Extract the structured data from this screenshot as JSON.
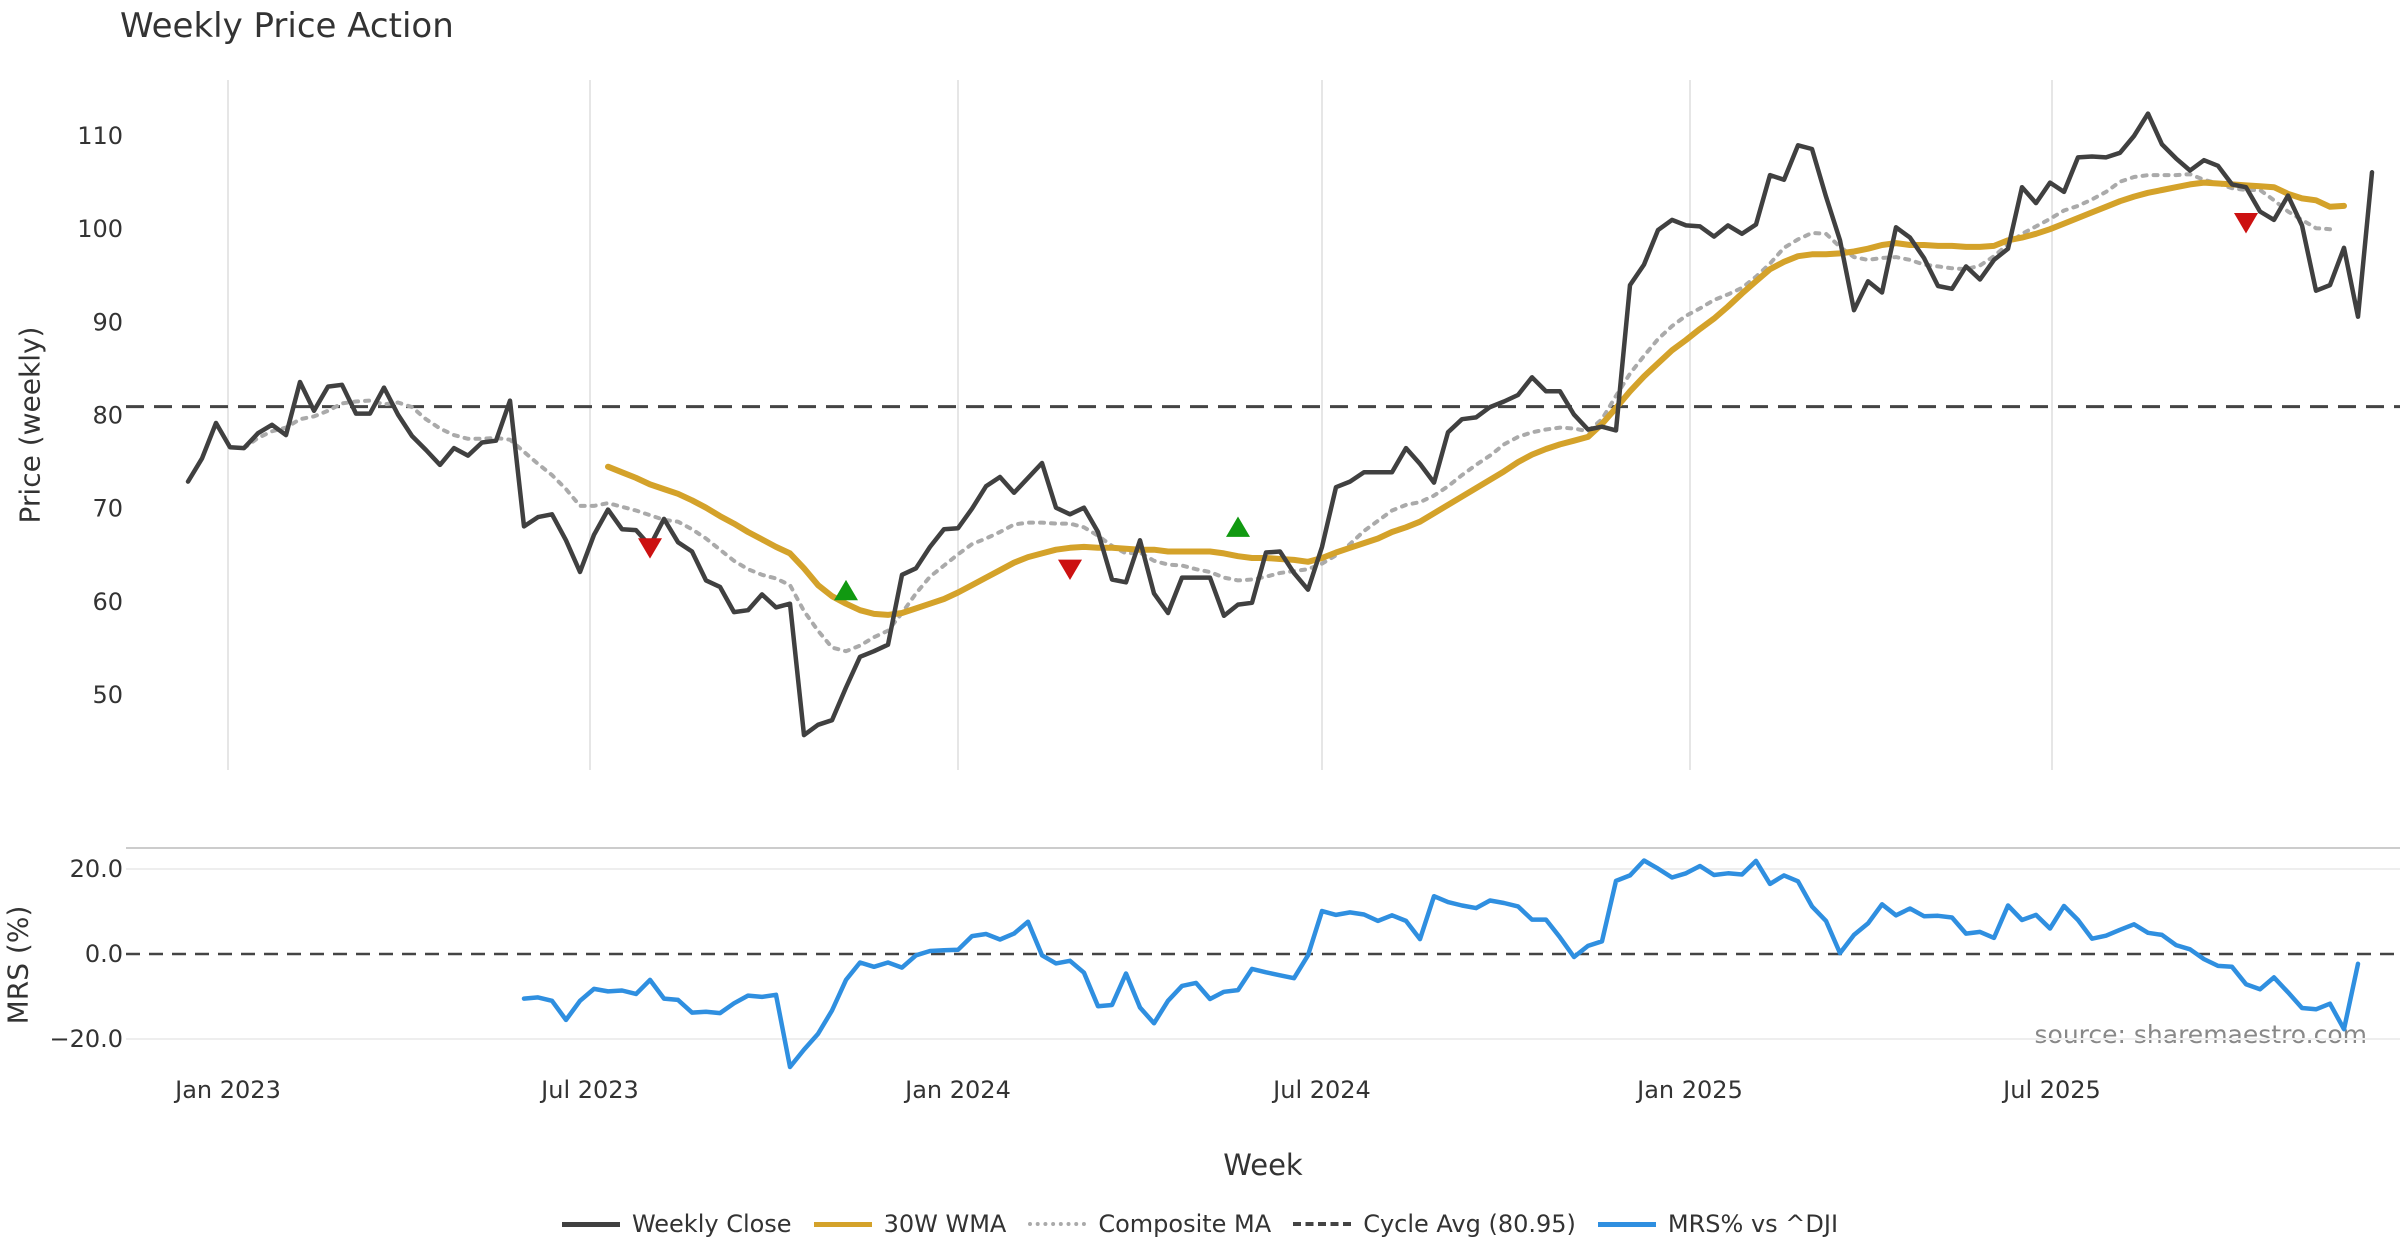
{
  "chart_data": [
    {
      "type": "line",
      "title": "Weekly Price Action",
      "ylabel": "Price (weekly)",
      "xlabel": "Week",
      "x_start": "2022-12-12",
      "x_step_days": 7,
      "ylim": [
        42,
        116
      ],
      "yticks": [
        50,
        60,
        70,
        80,
        90,
        100,
        110
      ],
      "xticks": [
        {
          "date": "2023-01-01",
          "label": "Jan 2023"
        },
        {
          "date": "2023-07-01",
          "label": "Jul 2023"
        },
        {
          "date": "2024-01-01",
          "label": "Jan 2024"
        },
        {
          "date": "2024-07-01",
          "label": "Jul 2024"
        },
        {
          "date": "2025-01-01",
          "label": "Jan 2025"
        },
        {
          "date": "2025-07-01",
          "label": "Jul 2025"
        }
      ],
      "grid": "vertical",
      "hline": {
        "value": 80.95,
        "label": "Cycle Avg (80.95)",
        "color": "#444444"
      },
      "series": [
        {
          "name": "Weekly Close",
          "color": "#404040",
          "values": [
            72.9,
            75.4,
            79.2,
            76.6,
            76.5,
            78.1,
            79.0,
            77.9,
            83.6,
            80.5,
            83.1,
            83.3,
            80.2,
            80.2,
            83.0,
            80.1,
            77.8,
            76.3,
            74.7,
            76.5,
            75.7,
            77.1,
            77.3,
            81.6,
            68.1,
            69.1,
            69.4,
            66.6,
            63.2,
            67.2,
            69.9,
            67.8,
            67.7,
            66.0,
            68.9,
            66.4,
            65.4,
            62.3,
            61.6,
            58.9,
            59.1,
            60.8,
            59.4,
            59.8,
            45.7,
            46.8,
            47.3,
            50.8,
            54.1,
            54.7,
            55.4,
            62.9,
            63.6,
            65.9,
            67.8,
            67.9,
            70.0,
            72.4,
            73.4,
            71.7,
            73.3,
            74.9,
            70.1,
            69.4,
            70.1,
            67.5,
            62.4,
            62.1,
            66.6,
            60.9,
            58.8,
            62.6,
            62.6,
            62.6,
            58.5,
            59.7,
            59.9,
            65.3,
            65.4,
            63.1,
            61.3,
            65.9,
            72.3,
            72.9,
            73.9,
            73.9,
            73.9,
            76.5,
            74.8,
            72.8,
            78.2,
            79.6,
            79.8,
            80.9,
            81.5,
            82.2,
            84.1,
            82.6,
            82.6,
            80.1,
            78.5,
            78.8,
            78.4,
            94.0,
            96.2,
            99.9,
            101.0,
            100.4,
            100.3,
            99.2,
            100.4,
            99.5,
            100.5,
            105.8,
            105.3,
            109.0,
            108.6,
            103.5,
            98.8,
            91.3,
            94.4,
            93.2,
            100.2,
            99.1,
            96.9,
            93.9,
            93.6,
            96.0,
            94.6,
            96.7,
            97.9,
            104.5,
            102.8,
            105.0,
            104.0,
            107.7,
            107.8,
            107.7,
            108.2,
            110.0,
            112.4,
            109.1,
            107.6,
            106.3,
            107.4,
            106.8,
            104.8,
            104.5,
            101.9,
            101.0,
            103.6,
            100.4,
            93.4,
            94.0,
            98.0,
            90.6,
            106.1
          ]
        },
        {
          "name": "30W WMA",
          "color": "#d4a22a",
          "values": [
            null,
            null,
            null,
            null,
            null,
            null,
            null,
            null,
            null,
            null,
            null,
            null,
            null,
            null,
            null,
            null,
            null,
            null,
            null,
            null,
            null,
            null,
            null,
            null,
            null,
            null,
            null,
            null,
            null,
            null,
            74.5,
            73.9,
            73.3,
            72.6,
            72.1,
            71.6,
            70.9,
            70.1,
            69.2,
            68.4,
            67.5,
            66.7,
            65.9,
            65.2,
            63.6,
            61.8,
            60.6,
            59.8,
            59.1,
            58.7,
            58.6,
            58.8,
            59.3,
            59.8,
            60.3,
            61.0,
            61.8,
            62.6,
            63.4,
            64.2,
            64.8,
            65.2,
            65.6,
            65.8,
            65.9,
            65.8,
            65.8,
            65.7,
            65.6,
            65.6,
            65.4,
            65.4,
            65.4,
            65.4,
            65.2,
            64.9,
            64.7,
            64.7,
            64.6,
            64.5,
            64.3,
            64.7,
            65.3,
            65.8,
            66.3,
            66.8,
            67.5,
            68.0,
            68.6,
            69.5,
            70.4,
            71.3,
            72.2,
            73.1,
            74.0,
            75.0,
            75.8,
            76.4,
            76.9,
            77.3,
            77.7,
            79.1,
            80.8,
            82.6,
            84.2,
            85.6,
            87.0,
            88.1,
            89.3,
            90.4,
            91.7,
            93.1,
            94.4,
            95.7,
            96.5,
            97.1,
            97.3,
            97.3,
            97.4,
            97.6,
            97.9,
            98.3,
            98.5,
            98.3,
            98.3,
            98.2,
            98.2,
            98.1,
            98.1,
            98.2,
            98.8,
            99.1,
            99.5,
            100.0,
            100.6,
            101.2,
            101.8,
            102.4,
            103.0,
            103.5,
            103.9,
            104.2,
            104.5,
            104.8,
            105.0,
            104.9,
            104.8,
            104.7,
            104.6,
            104.5,
            103.8,
            103.3,
            103.1,
            102.4,
            102.5
          ]
        },
        {
          "name": "Composite MA",
          "color": "#aaaaaa",
          "values": [
            null,
            null,
            null,
            null,
            76.5,
            77.6,
            78.3,
            78.7,
            79.6,
            79.9,
            80.5,
            81.3,
            81.5,
            81.6,
            81.2,
            81.4,
            80.9,
            79.6,
            78.6,
            77.9,
            77.5,
            77.5,
            77.6,
            77.4,
            76.1,
            74.8,
            73.6,
            72.1,
            70.3,
            70.3,
            70.6,
            70.2,
            69.8,
            69.3,
            68.8,
            68.6,
            67.8,
            66.8,
            65.6,
            64.4,
            63.5,
            62.9,
            62.5,
            61.8,
            59.0,
            56.9,
            55.1,
            54.7,
            55.3,
            56.2,
            56.9,
            58.8,
            60.9,
            62.7,
            63.9,
            65.1,
            66.2,
            66.8,
            67.5,
            68.3,
            68.5,
            68.5,
            68.4,
            68.4,
            68.0,
            67.1,
            66.0,
            65.2,
            65.3,
            64.4,
            64.0,
            63.9,
            63.5,
            63.2,
            62.6,
            62.3,
            62.4,
            62.7,
            63.1,
            63.3,
            63.5,
            64.1,
            65.0,
            66.2,
            67.6,
            68.7,
            69.8,
            70.4,
            70.7,
            71.4,
            72.4,
            73.6,
            74.7,
            75.7,
            76.9,
            77.7,
            78.2,
            78.5,
            78.7,
            78.6,
            78.3,
            79.6,
            82.1,
            84.5,
            86.4,
            88.2,
            89.6,
            90.7,
            91.5,
            92.4,
            93.0,
            93.7,
            94.9,
            96.3,
            98.0,
            98.9,
            99.6,
            99.5,
            98.1,
            97.0,
            96.7,
            96.9,
            97.0,
            96.7,
            96.2,
            96.0,
            95.8,
            95.7,
            96.1,
            97.1,
            98.4,
            99.5,
            100.3,
            101.1,
            102.0,
            102.5,
            103.2,
            104.0,
            105.1,
            105.6,
            105.8,
            105.8,
            105.8,
            105.9,
            105.3,
            104.9,
            104.4,
            104.2,
            104.2,
            103.1,
            101.9,
            101.0,
            100.1,
            100.0
          ]
        },
        {
          "name": "Cycle Avg (80.95)",
          "color": "#444444",
          "values": [
            80.95
          ]
        }
      ],
      "markers": [
        {
          "type": "sell",
          "week_index": 33,
          "value": 65.8,
          "color": "#cc1111"
        },
        {
          "type": "buy",
          "week_index": 47,
          "value": 61.2,
          "color": "#119911"
        },
        {
          "type": "sell",
          "week_index": 63,
          "value": 63.5,
          "color": "#cc1111"
        },
        {
          "type": "buy",
          "week_index": 75,
          "value": 68.0,
          "color": "#119911"
        },
        {
          "type": "sell",
          "week_index": 147,
          "value": 100.7,
          "color": "#cc1111"
        }
      ]
    },
    {
      "type": "line",
      "ylabel": "MRS (%)",
      "xlabel": "Week",
      "ylim": [
        -26,
        27
      ],
      "yticks": [
        -20.0,
        0.0,
        20.0
      ],
      "ytick_labels": [
        "−20.0",
        "0.0",
        "20.0"
      ],
      "hline": {
        "value": 0,
        "color": "#444444"
      },
      "series": [
        {
          "name": "MRS% vs ^DJI",
          "color": "#2f8fe0",
          "values": [
            null,
            null,
            null,
            null,
            null,
            null,
            null,
            null,
            null,
            null,
            null,
            null,
            null,
            null,
            null,
            null,
            null,
            null,
            null,
            null,
            null,
            null,
            null,
            null,
            -10.5,
            -10.2,
            -11.0,
            -15.5,
            -11.0,
            -8.2,
            -8.8,
            -8.6,
            -9.4,
            -6.1,
            -10.5,
            -10.8,
            -13.8,
            -13.6,
            -13.9,
            -11.6,
            -9.8,
            -10.1,
            -9.6,
            -26.6,
            -22.5,
            -18.8,
            -13.3,
            -6.1,
            -2.0,
            -3.0,
            -2.0,
            -3.2,
            -0.3,
            0.7,
            0.9,
            1.0,
            4.2,
            4.7,
            3.4,
            4.8,
            7.6,
            -0.3,
            -2.2,
            -1.6,
            -4.4,
            -12.3,
            -12.0,
            -4.6,
            -12.6,
            -16.3,
            -11.0,
            -7.5,
            -6.8,
            -10.6,
            -8.9,
            -8.5,
            -3.5,
            -4.3,
            -5.0,
            -5.7,
            -0.3,
            10.1,
            9.2,
            9.8,
            9.3,
            7.8,
            9.1,
            7.8,
            3.5,
            13.6,
            12.2,
            11.4,
            10.8,
            12.6,
            12.0,
            11.2,
            8.1,
            8.1,
            3.9,
            -0.7,
            1.9,
            3.0,
            17.2,
            18.5,
            22.0,
            20.1,
            18.0,
            19.0,
            20.7,
            18.6,
            19.0,
            18.7,
            21.9,
            16.5,
            18.5,
            17.1,
            11.2,
            7.8,
            0.2,
            4.5,
            7.2,
            11.7,
            9.1,
            10.7,
            8.9,
            9.0,
            8.6,
            4.8,
            5.2,
            3.8,
            11.4,
            8.0,
            9.2,
            6.0,
            11.3,
            8.0,
            3.6,
            4.3,
            5.7,
            7.0,
            5.0,
            4.5,
            2.1,
            1.1,
            -1.2,
            -2.8,
            -3.0,
            -7.1,
            -8.3,
            -5.5,
            -9.0,
            -12.7,
            -13.0,
            -11.7,
            -17.7,
            -2.3
          ]
        },
        {
          "name": "",
          "values": [
            0
          ]
        }
      ]
    }
  ],
  "header": {
    "title": "Weekly Price Action"
  },
  "axes": {
    "price_ylabel": "Price (weekly)",
    "mrs_ylabel": "MRS (%)",
    "xlabel": "Week"
  },
  "source": "source: sharemaestro.com",
  "legend": {
    "placement": "bottom-center",
    "items": [
      {
        "label": "Weekly Close",
        "color": "#404040",
        "style": "solid"
      },
      {
        "label": "30W WMA",
        "color": "#d4a22a",
        "style": "solid"
      },
      {
        "label": "Composite MA",
        "color": "#aaaaaa",
        "style": "dotted"
      },
      {
        "label": "Cycle Avg (80.95)",
        "color": "#444444",
        "style": "dashed"
      },
      {
        "label": "MRS% vs ^DJI",
        "color": "#2f8fe0",
        "style": "solid"
      }
    ]
  }
}
